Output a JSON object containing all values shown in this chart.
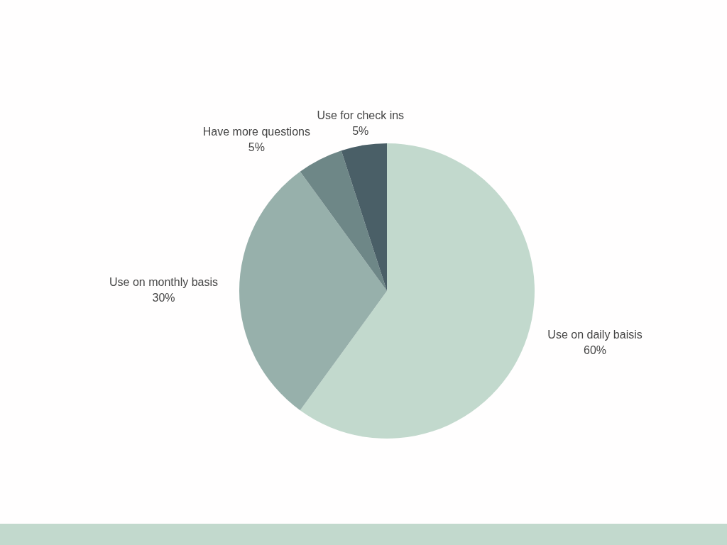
{
  "chart_data": {
    "type": "pie",
    "categories": [
      "Use on daily baisis",
      "Use on monthly basis",
      "Have more questions",
      "Use for check ins"
    ],
    "values": [
      60,
      30,
      5,
      5
    ],
    "colors": [
      "#c2d9cd",
      "#97b0ab",
      "#6e8787",
      "#4a5f67"
    ],
    "value_labels": [
      "60%",
      "30%",
      "5%",
      "5%"
    ],
    "legend": false
  }
}
